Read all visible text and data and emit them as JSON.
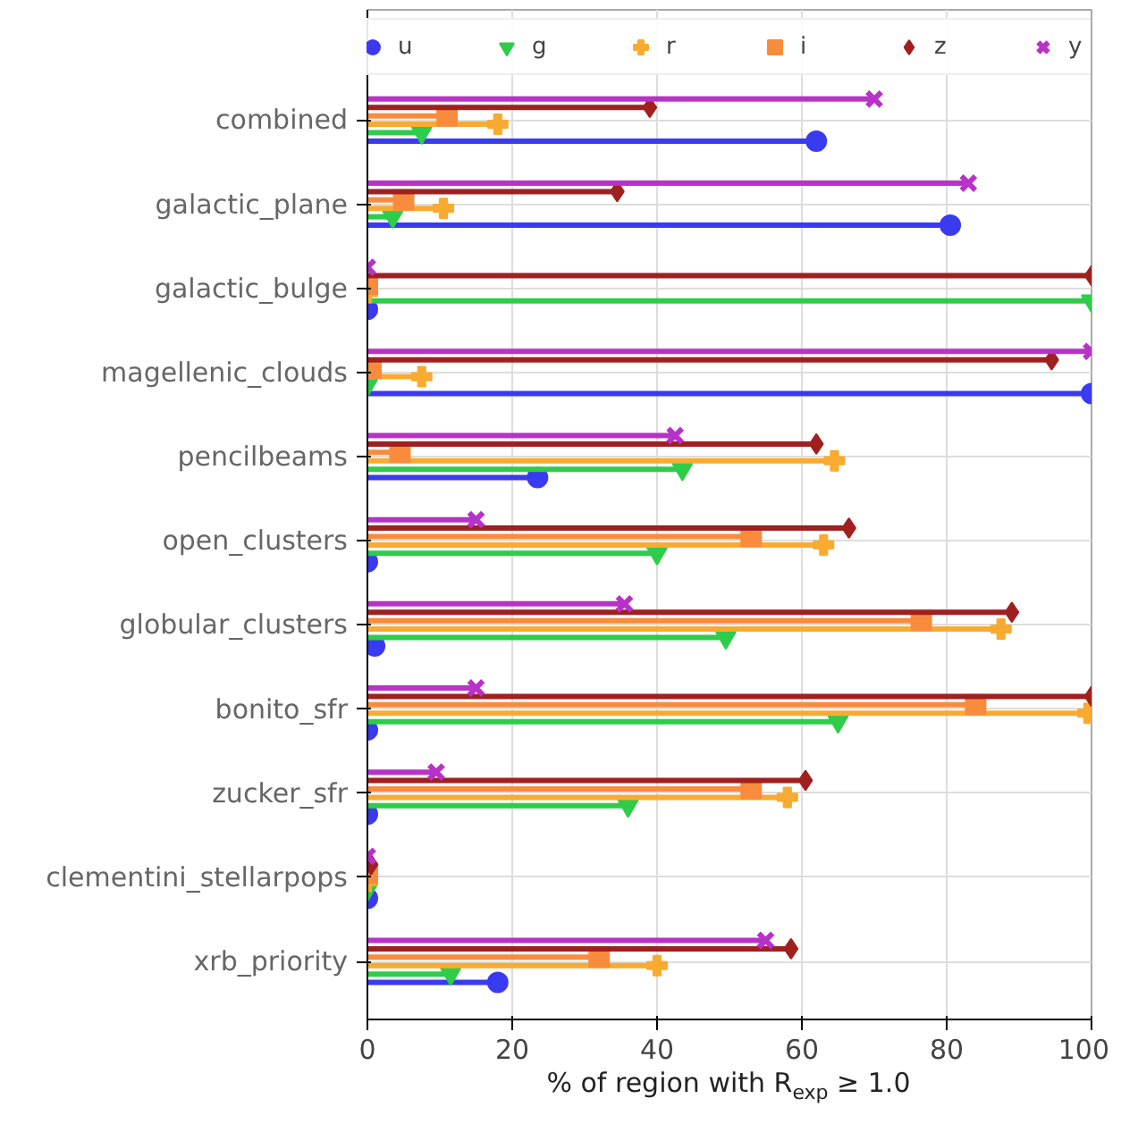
{
  "chart_data": {
    "type": "lollipop",
    "orientation": "horizontal",
    "xlabel": "% of region with R$_{exp}$ ≥ 1.0",
    "categories": [
      "combined",
      "galactic_plane",
      "galactic_bulge",
      "magellenic_clouds",
      "pencilbeams",
      "open_clusters",
      "globular_clusters",
      "bonito_sfr",
      "zucker_sfr",
      "clementini_stellarpops",
      "xrb_priority"
    ],
    "series": [
      {
        "name": "u",
        "color": "#3a3af0",
        "marker": "circle",
        "values": [
          62,
          80.5,
          0,
          100,
          23.5,
          0,
          1,
          0,
          0,
          0,
          18
        ]
      },
      {
        "name": "g",
        "color": "#2ecc4a",
        "marker": "triangle",
        "values": [
          7.5,
          3.5,
          100,
          0,
          43.5,
          40,
          49.5,
          65,
          36,
          0,
          11.5
        ]
      },
      {
        "name": "r",
        "color": "#f8ab30",
        "marker": "cross",
        "values": [
          18,
          10.5,
          0,
          7.5,
          64.5,
          63,
          87.5,
          99.5,
          58,
          0,
          40
        ]
      },
      {
        "name": "i",
        "color": "#f98c3c",
        "marker": "square",
        "values": [
          11,
          5,
          0,
          0.5,
          4.5,
          53,
          76.5,
          84,
          53,
          0,
          32
        ]
      },
      {
        "name": "z",
        "color": "#a02020",
        "marker": "diamond",
        "values": [
          39,
          34.5,
          100,
          94.5,
          62,
          66.5,
          89,
          100,
          60.5,
          0.5,
          58.5
        ]
      },
      {
        "name": "y",
        "color": "#b832c8",
        "marker": "x",
        "values": [
          70,
          83,
          0,
          100,
          42.5,
          15,
          35.5,
          15,
          9.5,
          0,
          55
        ]
      }
    ],
    "xlim": [
      0,
      100
    ],
    "xticks": [
      0,
      20,
      40,
      60,
      80,
      100
    ],
    "grid": true,
    "legend": "top"
  }
}
